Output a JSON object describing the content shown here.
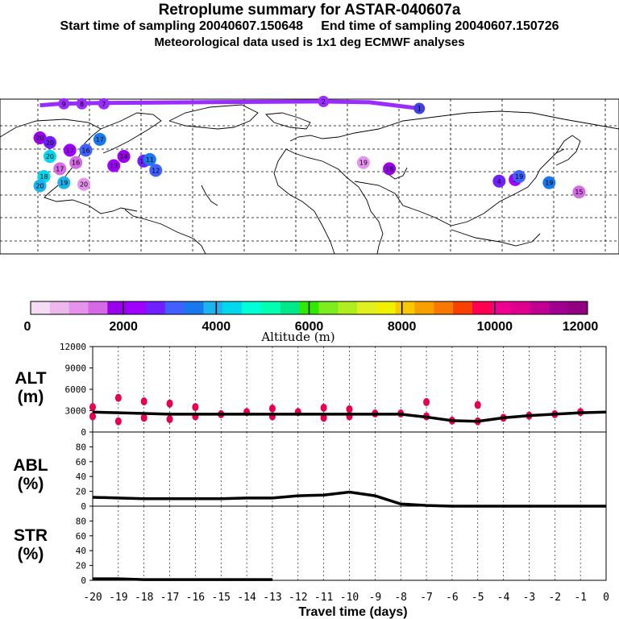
{
  "header": {
    "title": "Retroplume summary for ASTAR-040607a",
    "start_label": "Start time of sampling 20040607.150648",
    "end_label": "End time of sampling 20040607.150726",
    "met_label": "Meteorological data used is 1x1 deg ECMWF analyses"
  },
  "colorbar": {
    "colors": [
      "#f5dcf5",
      "#eeb8ee",
      "#e693ee",
      "#d66ae6",
      "#9900ee",
      "#a000ff",
      "#7020ff",
      "#4060ff",
      "#1a78ee",
      "#1ab4ee",
      "#00d8ee",
      "#00ffd8",
      "#00ffb0",
      "#00e88c",
      "#30e800",
      "#7cee20",
      "#b0ee20",
      "#e0f020",
      "#f0f000",
      "#f8c800",
      "#f8a000",
      "#f87800",
      "#f84000",
      "#ff0050",
      "#f00090",
      "#e00090",
      "#c00090",
      "#a00090",
      "#900080"
    ],
    "ticks": [
      "0",
      "2000",
      "4000",
      "6000",
      "8000",
      "10000",
      "12000"
    ],
    "label": "Altitude (m)"
  },
  "map": {
    "plume_points": [
      {
        "lon": -120,
        "lat": 65,
        "label": "20"
      },
      {
        "lon": -115,
        "lat": 62,
        "label": "20"
      },
      {
        "lon": -105,
        "lat": 57,
        "label": "17"
      },
      {
        "lon": -97,
        "lat": 57,
        "label": "16"
      },
      {
        "lon": -90,
        "lat": 64,
        "label": "17"
      },
      {
        "lon": -110,
        "lat": 45,
        "label": "17"
      },
      {
        "lon": -118,
        "lat": 40,
        "label": "18"
      },
      {
        "lon": -108,
        "lat": 36,
        "label": "19"
      },
      {
        "lon": -98,
        "lat": 35,
        "label": "20"
      },
      {
        "lon": -78,
        "lat": 53,
        "label": "14"
      },
      {
        "lon": -68,
        "lat": 50,
        "label": "13"
      },
      {
        "lon": -83,
        "lat": 47,
        "label": "13"
      },
      {
        "lon": -62,
        "lat": 44,
        "label": "12"
      },
      {
        "lon": -65,
        "lat": 51,
        "label": "11"
      },
      {
        "lon": -102,
        "lat": 49,
        "label": "16"
      },
      {
        "lon": -115,
        "lat": 53,
        "label": "20"
      },
      {
        "lon": -120,
        "lat": 34,
        "label": "20"
      },
      {
        "lon": 42,
        "lat": 49,
        "label": "19"
      },
      {
        "lon": 55,
        "lat": 45,
        "label": "18"
      },
      {
        "lon": 110,
        "lat": 37,
        "label": "4"
      },
      {
        "lon": 118,
        "lat": 38,
        "label": "2"
      },
      {
        "lon": 120,
        "lat": 40,
        "label": "19"
      },
      {
        "lon": 135,
        "lat": 36,
        "label": "19"
      },
      {
        "lon": 150,
        "lat": 30,
        "label": "15"
      }
    ],
    "track_lonlat": [
      [
        -120,
        86
      ],
      [
        -110,
        87
      ],
      [
        -90,
        87.5
      ],
      [
        -40,
        88
      ],
      [
        20,
        88.5
      ],
      [
        45,
        88
      ],
      [
        70,
        84
      ]
    ],
    "track_labels": [
      {
        "lon": -108,
        "lat": 87,
        "label": "9"
      },
      {
        "lon": -99,
        "lat": 87,
        "label": "8"
      },
      {
        "lon": -88,
        "lat": 87,
        "label": "7"
      },
      {
        "lon": 22,
        "lat": 88.5,
        "label": "2"
      },
      {
        "lon": 70,
        "lat": 84,
        "label": "1"
      }
    ]
  },
  "chart_data": [
    {
      "type": "line",
      "panel": "ALT",
      "title": "ALT (m)",
      "ylabel": "(m)",
      "ylim": [
        0,
        12000
      ],
      "yticks": [
        "0",
        "3000",
        "6000",
        "9000",
        "12000"
      ],
      "xlim": [
        -20,
        0
      ],
      "xticks": [
        "-20",
        "-19",
        "-18",
        "-17",
        "-16",
        "-15",
        "-14",
        "-13",
        "-12",
        "-11",
        "-10",
        "-9",
        "-8",
        "-7",
        "-6",
        "-5",
        "-4",
        "-3",
        "-2",
        "-1",
        "0"
      ],
      "x": [
        -20,
        -19,
        -18,
        -17,
        -16,
        -15,
        -14,
        -13,
        -12,
        -11,
        -10,
        -9,
        -8,
        -7,
        -6,
        -5,
        -4,
        -3,
        -2,
        -1,
        0
      ],
      "values": [
        2800,
        2700,
        2600,
        2500,
        2500,
        2500,
        2500,
        2500,
        2500,
        2500,
        2500,
        2500,
        2500,
        2100,
        1600,
        1500,
        2000,
        2300,
        2500,
        2700,
        2800
      ],
      "scatter_x": [
        -20,
        -20,
        -19,
        -19,
        -18,
        -18,
        -17,
        -17,
        -16,
        -16,
        -15,
        -14,
        -13,
        -13,
        -12,
        -11,
        -11,
        -10,
        -10,
        -9,
        -8,
        -7,
        -6,
        -5,
        -4,
        -3,
        -2,
        -1,
        -7,
        -5
      ],
      "scatter_y": [
        3500,
        2200,
        4800,
        1500,
        4300,
        2000,
        4000,
        1800,
        3500,
        2200,
        2500,
        2800,
        3300,
        2200,
        2800,
        3400,
        2000,
        3200,
        2200,
        2600,
        2600,
        2200,
        1600,
        1500,
        2000,
        2300,
        2500,
        2800,
        4200,
        3800
      ]
    },
    {
      "type": "line",
      "panel": "ABL",
      "title": "ABL (%)",
      "ylabel": "(%)",
      "ylim": [
        0,
        100
      ],
      "yticks": [
        "0",
        "20",
        "40",
        "60",
        "80"
      ],
      "xlim": [
        -20,
        0
      ],
      "x": [
        -20,
        -19,
        -18,
        -17,
        -16,
        -15,
        -14,
        -13,
        -12,
        -11,
        -10,
        -9,
        -8,
        -7,
        -6,
        -5,
        -4,
        -3,
        -2,
        -1,
        0
      ],
      "values": [
        12,
        11,
        10,
        10,
        10,
        10,
        11,
        11,
        14,
        15,
        19,
        14,
        3,
        1,
        0,
        0,
        0,
        0,
        0,
        0,
        0
      ]
    },
    {
      "type": "line",
      "panel": "STR",
      "title": "STR (%)",
      "ylabel": "(%)",
      "ylim": [
        0,
        100
      ],
      "yticks": [
        "0",
        "20",
        "40",
        "60",
        "80"
      ],
      "xlim": [
        -20,
        0
      ],
      "x": [
        -20,
        -19,
        -18,
        -17,
        -16,
        -15,
        -14,
        -13
      ],
      "values": [
        2,
        2,
        1,
        1,
        1,
        1,
        1,
        1
      ],
      "xlabel": "Travel time (days)"
    }
  ],
  "panel_labels": {
    "alt": {
      "line1": "ALT",
      "line2": "(m)"
    },
    "abl": {
      "line1": "ABL",
      "line2": "(%)"
    },
    "str": {
      "line1": "STR",
      "line2": "(%)"
    }
  }
}
